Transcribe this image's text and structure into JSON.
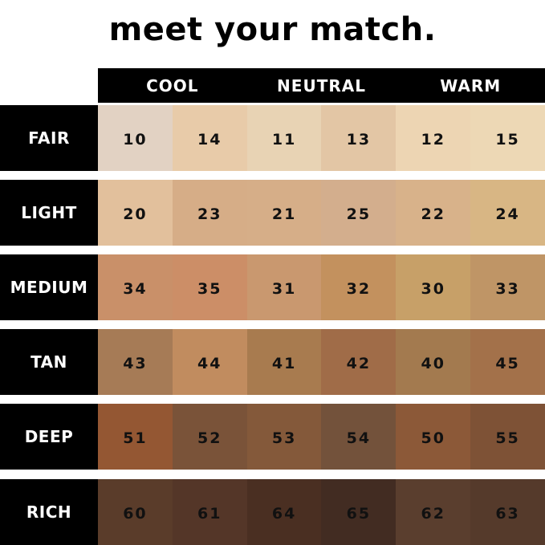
{
  "title": "meet your match.",
  "columns": [
    "COOL",
    "NEUTRAL",
    "WARM"
  ],
  "rows": [
    {
      "label": "FAIR",
      "shades": [
        {
          "code": "10",
          "color": "#e2d2c3"
        },
        {
          "code": "14",
          "color": "#e8cba9"
        },
        {
          "code": "11",
          "color": "#e8d3b4"
        },
        {
          "code": "13",
          "color": "#e3c6a5"
        },
        {
          "code": "12",
          "color": "#edd5b3"
        },
        {
          "code": "15",
          "color": "#edd8b5"
        }
      ]
    },
    {
      "label": "LIGHT",
      "shades": [
        {
          "code": "20",
          "color": "#e2c09c"
        },
        {
          "code": "23",
          "color": "#d6ad87"
        },
        {
          "code": "21",
          "color": "#d6ae88"
        },
        {
          "code": "25",
          "color": "#d3ae8d"
        },
        {
          "code": "22",
          "color": "#d8b28a"
        },
        {
          "code": "24",
          "color": "#d8b684"
        }
      ]
    },
    {
      "label": "MEDIUM",
      "shades": [
        {
          "code": "34",
          "color": "#c99069"
        },
        {
          "code": "35",
          "color": "#cc8e67"
        },
        {
          "code": "31",
          "color": "#c9986f"
        },
        {
          "code": "32",
          "color": "#c3915e"
        },
        {
          "code": "30",
          "color": "#c7a068"
        },
        {
          "code": "33",
          "color": "#bf9566"
        }
      ]
    },
    {
      "label": "TAN",
      "shades": [
        {
          "code": "43",
          "color": "#a67b56"
        },
        {
          "code": "44",
          "color": "#c18c5f"
        },
        {
          "code": "41",
          "color": "#a87b4f"
        },
        {
          "code": "42",
          "color": "#a06c48"
        },
        {
          "code": "40",
          "color": "#a37a4f"
        },
        {
          "code": "45",
          "color": "#a3714a"
        }
      ]
    },
    {
      "label": "DEEP",
      "shades": [
        {
          "code": "51",
          "color": "#945733"
        },
        {
          "code": "52",
          "color": "#7a5339"
        },
        {
          "code": "53",
          "color": "#84593a"
        },
        {
          "code": "54",
          "color": "#73523b"
        },
        {
          "code": "50",
          "color": "#8c5938"
        },
        {
          "code": "55",
          "color": "#7e5236"
        }
      ]
    },
    {
      "label": "RICH",
      "shades": [
        {
          "code": "60",
          "color": "#5a3c2a"
        },
        {
          "code": "61",
          "color": "#543628"
        },
        {
          "code": "64",
          "color": "#4a2f22"
        },
        {
          "code": "65",
          "color": "#422c22"
        },
        {
          "code": "62",
          "color": "#5a3e2e"
        },
        {
          "code": "63",
          "color": "#553a2b"
        }
      ]
    }
  ]
}
